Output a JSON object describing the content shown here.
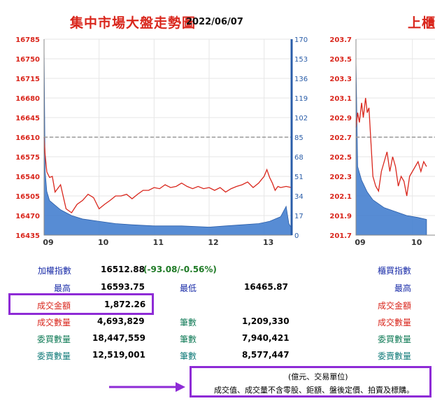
{
  "title": {
    "main": "集中市場大盤走勢圖",
    "date": "2022/06/07",
    "right_partial": "上櫃"
  },
  "colors": {
    "index_line": "#d9261c",
    "volume_fill": "#3a78cc",
    "ref_line": "#999999",
    "highlight_box": "#8e2bd6"
  },
  "chart_data": [
    {
      "type": "line",
      "title": "集中市場大盤走勢圖",
      "ylabel": "",
      "xlabel": "",
      "x_ticks": [
        "09",
        "10",
        "11",
        "12",
        "13"
      ],
      "x_range": [
        9.0,
        13.5
      ],
      "ylim": [
        16435,
        16785
      ],
      "y_ticks": [
        "16785",
        "16750",
        "16715",
        "16680",
        "16645",
        "16610",
        "16575",
        "16540",
        "16505",
        "16470",
        "16435"
      ],
      "y2lim": [
        0,
        170
      ],
      "y2_ticks": [
        "170",
        "153",
        "136",
        "119",
        "102",
        "85",
        "68",
        "51",
        "34",
        "17",
        "0"
      ],
      "reference_line": 16610,
      "series": [
        {
          "kind": "index_line",
          "x": [
            9.0,
            9.02,
            9.05,
            9.1,
            9.15,
            9.2,
            9.3,
            9.4,
            9.5,
            9.6,
            9.7,
            9.8,
            9.9,
            10.0,
            10.1,
            10.2,
            10.3,
            10.4,
            10.5,
            10.6,
            10.7,
            10.8,
            10.9,
            11.0,
            11.1,
            11.2,
            11.3,
            11.4,
            11.5,
            11.6,
            11.7,
            11.8,
            11.9,
            12.0,
            12.1,
            12.2,
            12.3,
            12.4,
            12.5,
            12.6,
            12.7,
            12.8,
            12.9,
            13.0,
            13.05,
            13.1,
            13.15,
            13.2,
            13.25,
            13.3,
            13.4,
            13.5
          ],
          "y": [
            16610,
            16578,
            16548,
            16538,
            16540,
            16512,
            16525,
            16482,
            16475,
            16490,
            16497,
            16508,
            16502,
            16482,
            16490,
            16497,
            16505,
            16505,
            16508,
            16500,
            16508,
            16515,
            16515,
            16520,
            16518,
            16525,
            16520,
            16522,
            16528,
            16522,
            16518,
            16522,
            16518,
            16520,
            16515,
            16520,
            16512,
            16518,
            16522,
            16525,
            16530,
            16520,
            16528,
            16540,
            16552,
            16538,
            16528,
            16515,
            16522,
            16520,
            16522,
            16520
          ]
        },
        {
          "kind": "volume_area",
          "x": [
            9.0,
            9.02,
            9.05,
            9.1,
            9.2,
            9.3,
            9.5,
            9.7,
            10.0,
            10.3,
            10.6,
            11.0,
            11.5,
            12.0,
            12.3,
            12.6,
            12.9,
            13.1,
            13.3,
            13.4,
            13.45,
            13.5
          ],
          "y": [
            165,
            55,
            38,
            30,
            26,
            22,
            17,
            14,
            12,
            10,
            9,
            8,
            8,
            7,
            8,
            9,
            10,
            12,
            16,
            25,
            10,
            6
          ]
        }
      ]
    },
    {
      "type": "line",
      "title": "上櫃",
      "ylabel": "",
      "xlabel": "",
      "x_ticks": [
        "09",
        "10"
      ],
      "ylim": [
        201.7,
        203.7
      ],
      "y_ticks": [
        "203.7",
        "203.5",
        "203.3",
        "203.1",
        "202.9",
        "202.7",
        "202.5",
        "202.3",
        "202.1",
        "201.9",
        "201.7"
      ],
      "reference_line": 202.7,
      "series": [
        {
          "kind": "index_line",
          "x": [
            9.0,
            9.03,
            9.06,
            9.1,
            9.13,
            9.17,
            9.2,
            9.23,
            9.27,
            9.3,
            9.35,
            9.4,
            9.45,
            9.5,
            9.55,
            9.6,
            9.65,
            9.7,
            9.75,
            9.8,
            9.85,
            9.9,
            9.95,
            10.0,
            10.05,
            10.1,
            10.15,
            10.2,
            10.25
          ],
          "y": [
            202.8,
            202.95,
            202.85,
            203.05,
            202.9,
            203.1,
            202.95,
            203.0,
            202.6,
            202.3,
            202.2,
            202.15,
            202.35,
            202.45,
            202.55,
            202.35,
            202.5,
            202.4,
            202.2,
            202.3,
            202.25,
            202.1,
            202.3,
            202.35,
            202.4,
            202.45,
            202.35,
            202.45,
            202.4
          ]
        },
        {
          "kind": "volume_area",
          "x": [
            9.0,
            9.03,
            9.1,
            9.2,
            9.3,
            9.5,
            9.7,
            9.9,
            10.1,
            10.25
          ],
          "y": [
            0.9,
            0.35,
            0.28,
            0.22,
            0.18,
            0.14,
            0.12,
            0.1,
            0.09,
            0.08
          ]
        }
      ]
    }
  ],
  "stats": {
    "weighted_index_label": "加權指數",
    "weighted_index_value": "16512.88",
    "weighted_index_change": "(-93.08/-0.56%)",
    "high_label": "最高",
    "high_value": "16593.75",
    "low_label": "最低",
    "low_value": "16465.87",
    "turnover_label": "成交金額",
    "turnover_value": "1,872.26",
    "volume_label": "成交數量",
    "volume_value": "4,693,829",
    "volume_count_label": "筆數",
    "volume_count_value": "1,209,330",
    "bid_label": "委買數量",
    "bid_value": "18,447,559",
    "bid_count_label": "筆數",
    "bid_count_value": "7,940,421",
    "ask_label": "委賣數量",
    "ask_value": "12,519,001",
    "ask_count_label": "筆數",
    "ask_count_value": "8,577,447"
  },
  "right_stats": {
    "index_label": "櫃買指數",
    "high_label": "最高",
    "turnover_label": "成交金額",
    "volume_label": "成交數量",
    "bid_label": "委買數量",
    "ask_label": "委賣數量"
  },
  "note": {
    "unit": "(億元、交易單位)",
    "text": "成交值、成交量不含零股、鉅額、盤後定價、拍賣及標購。"
  }
}
